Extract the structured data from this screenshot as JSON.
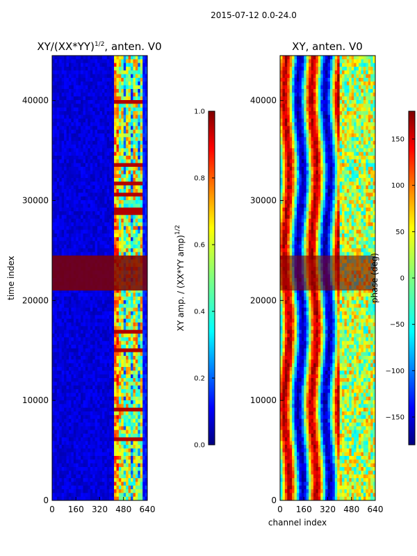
{
  "chart_data": [
    {
      "type": "heatmap",
      "title_main": "XY/(XX*YY)",
      "title_sup": "1/2",
      "title_tail": ", anten. V0",
      "xlabel": "",
      "ylabel": "time index",
      "xlim": [
        0,
        640
      ],
      "ylim": [
        0,
        44500
      ],
      "xticks": [
        0,
        160,
        320,
        480,
        640
      ],
      "yticks": [
        0,
        10000,
        20000,
        30000,
        40000
      ],
      "colormap": "jet",
      "colorbar": {
        "label_main": "XY amp. / (XX*YY amp)",
        "label_sup": "1/2",
        "range": [
          0.0,
          1.0
        ],
        "ticks": [
          "0.0",
          "0.2",
          "0.4",
          "0.6",
          "0.8",
          "1.0"
        ]
      }
    },
    {
      "type": "heatmap",
      "title": "XY, anten. V0",
      "xlabel": "channel index",
      "ylabel": "",
      "xlim": [
        0,
        640
      ],
      "ylim": [
        0,
        44500
      ],
      "xticks": [
        0,
        160,
        320,
        480,
        640
      ],
      "yticks": [
        0,
        10000,
        20000,
        30000,
        40000
      ],
      "colormap": "jet",
      "colorbar": {
        "label": "phase (deg)",
        "range": [
          -180,
          180
        ],
        "ticks": [
          "150",
          "100",
          "50",
          "0",
          "−50",
          "−100",
          "−150"
        ]
      }
    }
  ],
  "suptitle": "2015-07-12 0.0-24.0",
  "colors": {
    "jet_dark_blue": "#00007f",
    "jet_blue": "#0000ff",
    "jet_cyan": "#00ffff",
    "jet_yellow": "#ffff00",
    "jet_red": "#ff0000",
    "jet_dark_red": "#7f0000"
  }
}
